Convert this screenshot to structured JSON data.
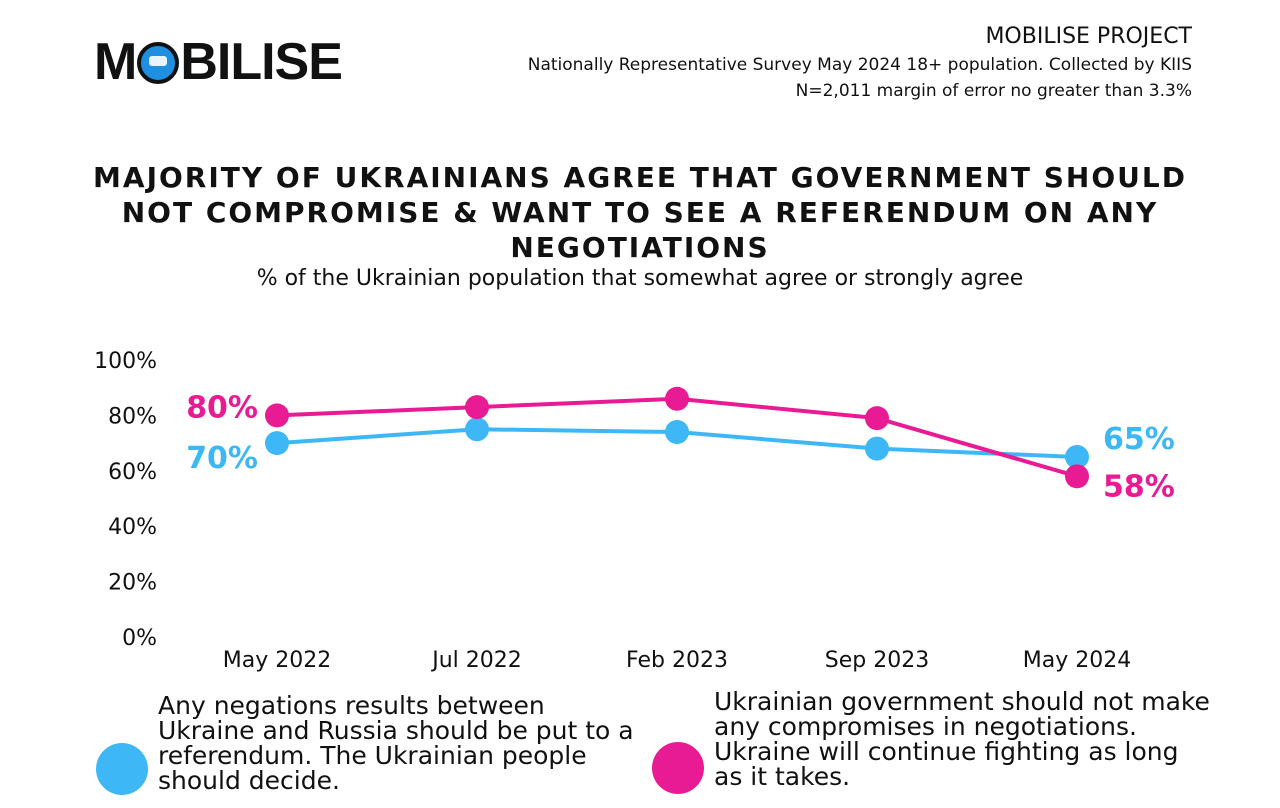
{
  "header": {
    "logo_text_pre": "M",
    "logo_text_post": "BILISE",
    "project": "MOBILISE PROJECT",
    "survey_line": "Nationally Representative Survey May 2024 18+ population. Collected by KIIS",
    "sample_line": "N=2,011 margin of error no greater than 3.3%"
  },
  "colors": {
    "blue": "#3db7f5",
    "pink": "#e81b94",
    "text": "#111111"
  },
  "chart_data": {
    "type": "line",
    "title": "MAJORITY OF UKRAINIANS AGREE THAT GOVERNMENT SHOULD NOT COMPROMISE & WANT TO SEE A REFERENDUM ON ANY NEGOTIATIONS",
    "subtitle": "% of the Ukrainian population that somewhat agree or strongly agree",
    "categories": [
      "May 2022",
      "Jul 2022",
      "Feb 2023",
      "Sep 2023",
      "May 2024"
    ],
    "y_ticks": [
      "0%",
      "20%",
      "40%",
      "60%",
      "80%",
      "100%"
    ],
    "ylim": [
      0,
      100
    ],
    "grid": false,
    "series": [
      {
        "name": "Any negations results between Ukraine and Russia should be put to a referendum. The Ukrainian people should decide.",
        "color": "#3db7f5",
        "values": [
          70,
          75,
          74,
          68,
          65
        ],
        "start_label": "70%",
        "end_label": "65%"
      },
      {
        "name": "Ukrainian government should not make any compromises in negotiations. Ukraine will continue fighting as long as it takes.",
        "color": "#e81b94",
        "values": [
          80,
          83,
          86,
          79,
          58
        ],
        "start_label": "80%",
        "end_label": "58%"
      }
    ]
  },
  "legend": [
    {
      "text": "Any negations results between Ukraine and Russia should be put to a referendum. The Ukrainian people should decide.",
      "color": "#3db7f5"
    },
    {
      "text": "Ukrainian government should not make any compromises in negotiations. Ukraine will continue fighting as long as it takes.",
      "color": "#e81b94"
    }
  ]
}
